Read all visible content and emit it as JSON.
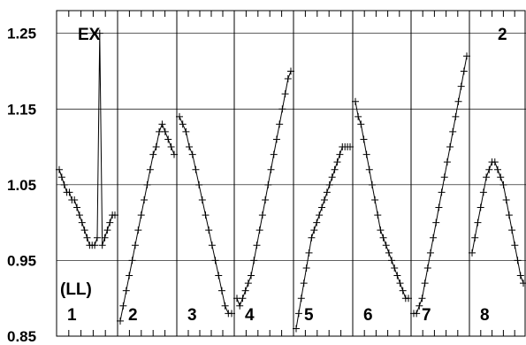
{
  "chart_data": {
    "type": "scatter",
    "ylim": [
      0.85,
      1.28
    ],
    "yticks": [
      0.85,
      0.95,
      1.05,
      1.15,
      1.25
    ],
    "ytick_labels": [
      "0.85",
      "0.95",
      "1.05",
      "1.15",
      "1.25"
    ],
    "grid": "horizontal",
    "annotations": {
      "top_left": "EX",
      "top_right": "2",
      "mid_left": "(LL)"
    },
    "panels": [
      {
        "label": "1",
        "y": [
          1.07,
          1.06,
          1.05,
          1.04,
          1.04,
          1.03,
          1.03,
          1.02,
          1.01,
          1.0,
          0.99,
          0.98,
          0.97,
          0.97,
          0.97,
          0.98,
          1.25,
          0.97,
          0.98,
          0.99,
          1.0,
          1.01,
          1.01
        ]
      },
      {
        "label": "2",
        "y": [
          0.87,
          0.89,
          0.91,
          0.93,
          0.95,
          0.97,
          0.99,
          1.01,
          1.03,
          1.05,
          1.07,
          1.09,
          1.1,
          1.12,
          1.13,
          1.12,
          1.11,
          1.1,
          1.09
        ]
      },
      {
        "label": "3",
        "y": [
          1.14,
          1.13,
          1.12,
          1.1,
          1.09,
          1.07,
          1.05,
          1.03,
          1.01,
          0.99,
          0.97,
          0.95,
          0.93,
          0.91,
          0.89,
          0.88,
          0.88
        ]
      },
      {
        "label": "4",
        "y": [
          0.9,
          0.89,
          0.9,
          0.91,
          0.92,
          0.93,
          0.95,
          0.97,
          0.99,
          1.01,
          1.03,
          1.05,
          1.07,
          1.09,
          1.11,
          1.13,
          1.15,
          1.17,
          1.19,
          1.2
        ]
      },
      {
        "label": "5",
        "y": [
          0.86,
          0.88,
          0.9,
          0.92,
          0.94,
          0.96,
          0.98,
          0.99,
          1.0,
          1.01,
          1.02,
          1.03,
          1.04,
          1.05,
          1.06,
          1.07,
          1.08,
          1.09,
          1.1,
          1.1,
          1.1,
          1.1
        ]
      },
      {
        "label": "6",
        "y": [
          1.16,
          1.14,
          1.13,
          1.11,
          1.09,
          1.07,
          1.05,
          1.03,
          1.01,
          0.99,
          0.98,
          0.97,
          0.96,
          0.95,
          0.94,
          0.93,
          0.92,
          0.91,
          0.9,
          0.9
        ]
      },
      {
        "label": "7",
        "y": [
          0.88,
          0.88,
          0.89,
          0.9,
          0.92,
          0.94,
          0.96,
          0.98,
          1.0,
          1.02,
          1.04,
          1.06,
          1.08,
          1.1,
          1.12,
          1.14,
          1.16,
          1.18,
          1.2,
          1.22
        ]
      },
      {
        "label": "8",
        "y": [
          0.96,
          0.98,
          1.0,
          1.02,
          1.04,
          1.06,
          1.07,
          1.08,
          1.08,
          1.07,
          1.06,
          1.05,
          1.03,
          1.01,
          0.99,
          0.97,
          0.95,
          0.93,
          0.92
        ]
      }
    ]
  }
}
